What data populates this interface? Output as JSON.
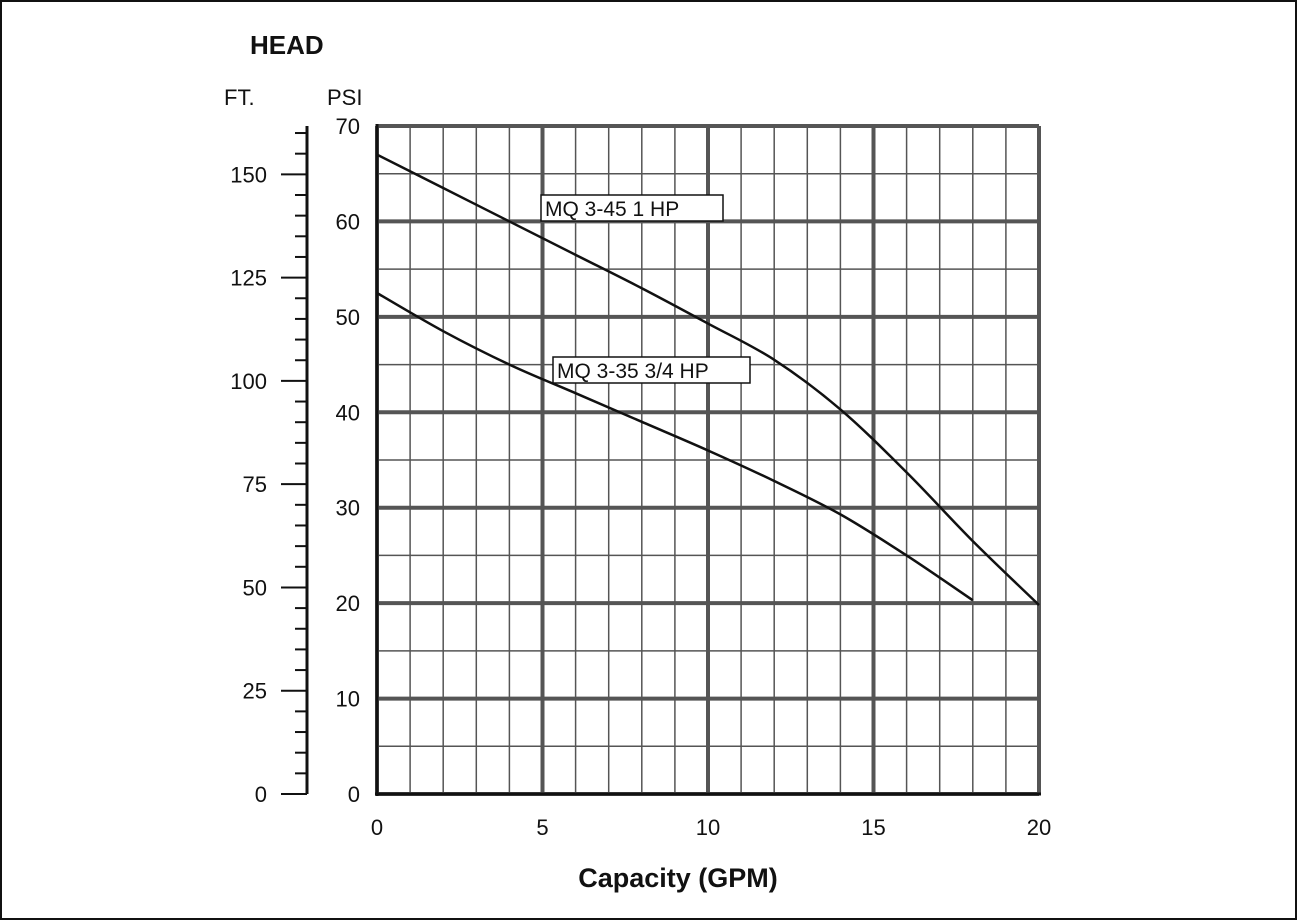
{
  "chart_data": {
    "type": "line",
    "title": "HEAD",
    "xlabel": "Capacity (GPM)",
    "y_units": [
      "FT.",
      "PSI"
    ],
    "xlim": [
      0,
      20
    ],
    "ylim": [
      0,
      70
    ],
    "x_ticks": [
      "0",
      "5",
      "10",
      "15",
      "20"
    ],
    "y_ticks_psi": [
      "0",
      "10",
      "20",
      "30",
      "40",
      "50",
      "60",
      "70"
    ],
    "y_ticks_ft": [
      "0",
      "25",
      "50",
      "75",
      "100",
      "125",
      "150"
    ],
    "grid": true,
    "series": [
      {
        "name": "MQ 3-45 1 HP",
        "x": [
          0,
          2,
          4,
          6,
          8,
          10,
          12,
          14,
          16,
          18,
          20
        ],
        "y": [
          67,
          63.5,
          60,
          56.5,
          53,
          49.3,
          45.5,
          40.3,
          33.7,
          26.5,
          19.8
        ]
      },
      {
        "name": "MQ 3-35 3/4 HP",
        "x": [
          0,
          2,
          4,
          6,
          8,
          10,
          12,
          14,
          16,
          18
        ],
        "y": [
          52.5,
          48.5,
          45,
          42,
          39,
          36,
          32.8,
          29.3,
          25,
          20.3
        ]
      }
    ]
  }
}
